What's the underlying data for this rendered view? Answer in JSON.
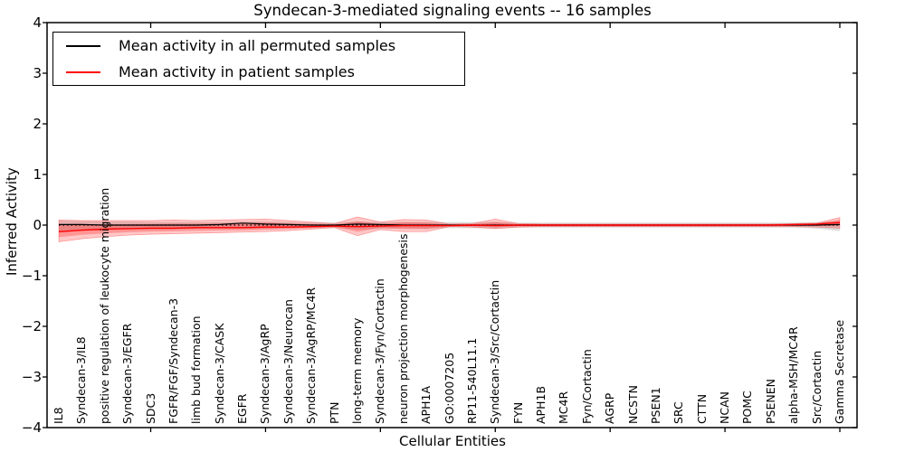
{
  "chart_data": {
    "type": "line",
    "title": "Syndecan-3-mediated signaling events -- 16 samples",
    "xlabel": "Cellular Entities",
    "ylabel": "Inferred Activity",
    "ylim": [
      -4,
      4
    ],
    "yticks": [
      4,
      3,
      2,
      1,
      0,
      -1,
      -2,
      -3,
      -4
    ],
    "grid": false,
    "zero_reference_line": true,
    "legend": {
      "position": "upper left"
    },
    "layout_hints": {
      "x_major_tick_indices": [
        4,
        9,
        14,
        19,
        24,
        29,
        34
      ],
      "x_labels_rotated_90_inside": true
    },
    "colors": {
      "permuted": "#000000",
      "patient": "#ff0000",
      "patient_band": "rgba(255,0,0,0.22)",
      "permuted_band": "rgba(0,0,0,0.13)"
    },
    "categories": [
      "IL8",
      "Syndecan-3/IL8",
      "positive regulation of leukocyte migration",
      "Syndecan-3/EGFR",
      "SDC3",
      "FGFR/FGF/Syndecan-3",
      "limb bud formation",
      "Syndecan-3/CASK",
      "EGFR",
      "Syndecan-3/AgRP",
      "Syndecan-3/Neurocan",
      "Syndecan-3/AgRP/MC4R",
      "PTN",
      "long-term memory",
      "Syndecan-3/Fyn/Cortactin",
      "neuron projection morphogenesis",
      "APH1A",
      "GO:0007205",
      "RP11-540L11.1",
      "Syndecan-3/Src/Cortactin",
      "FYN",
      "APH1B",
      "MC4R",
      "Fyn/Cortactin",
      "AGRP",
      "NCSTN",
      "PSEN1",
      "SRC",
      "CTTN",
      "NCAN",
      "POMC",
      "PSENEN",
      "alpha-MSH/MC4R",
      "Src/Cortactin",
      "Gamma Secretase"
    ],
    "series": [
      {
        "name": "Mean activity in all permuted samples",
        "color": "#000000",
        "values": [
          0.01,
          0.01,
          0.0,
          0.0,
          0.0,
          0.0,
          0.0,
          0.01,
          0.04,
          0.02,
          0.01,
          0.0,
          0.0,
          0.02,
          0.01,
          0.0,
          0.0,
          0.0,
          0.0,
          0.0,
          0.0,
          0.0,
          0.0,
          0.0,
          0.0,
          0.0,
          0.0,
          0.0,
          0.0,
          0.0,
          0.0,
          0.0,
          0.0,
          0.0,
          0.01
        ]
      },
      {
        "name": "Mean activity in patient samples",
        "color": "#ff0000",
        "values": [
          -0.13,
          -0.1,
          -0.08,
          -0.07,
          -0.06,
          -0.06,
          -0.05,
          -0.05,
          -0.05,
          -0.04,
          -0.04,
          -0.03,
          -0.02,
          -0.03,
          -0.02,
          -0.01,
          -0.01,
          -0.01,
          0.0,
          -0.01,
          0.0,
          0.0,
          0.0,
          0.0,
          0.0,
          0.0,
          0.0,
          0.0,
          0.0,
          0.0,
          0.0,
          0.0,
          0.01,
          0.02,
          0.05
        ]
      }
    ],
    "bands": [
      {
        "name": "patient-activity-range",
        "color": "#ff0000",
        "upper": [
          0.1,
          0.09,
          0.09,
          0.09,
          0.09,
          0.1,
          0.09,
          0.1,
          0.11,
          0.12,
          0.09,
          0.06,
          0.03,
          0.16,
          0.06,
          0.11,
          0.1,
          0.02,
          0.03,
          0.12,
          0.03,
          0.02,
          0.02,
          0.02,
          0.02,
          0.02,
          0.02,
          0.02,
          0.02,
          0.02,
          0.02,
          0.02,
          0.03,
          0.04,
          0.15
        ],
        "lower": [
          -0.33,
          -0.27,
          -0.23,
          -0.2,
          -0.18,
          -0.17,
          -0.16,
          -0.15,
          -0.14,
          -0.13,
          -0.11,
          -0.08,
          -0.05,
          -0.21,
          -0.09,
          -0.13,
          -0.13,
          -0.03,
          -0.04,
          -0.07,
          -0.04,
          -0.03,
          -0.03,
          -0.03,
          -0.03,
          -0.03,
          -0.03,
          -0.03,
          -0.03,
          -0.03,
          -0.03,
          -0.03,
          -0.03,
          -0.04,
          -0.06
        ]
      },
      {
        "name": "permuted-activity-range",
        "color": "#000000",
        "upper": [
          0.09,
          0.08,
          0.07,
          0.07,
          0.06,
          0.06,
          0.06,
          0.06,
          0.07,
          0.07,
          0.06,
          0.05,
          0.05,
          0.07,
          0.06,
          0.06,
          0.06,
          0.06,
          0.06,
          0.06,
          0.05,
          0.05,
          0.05,
          0.05,
          0.05,
          0.05,
          0.05,
          0.05,
          0.05,
          0.05,
          0.05,
          0.05,
          0.05,
          0.06,
          0.08
        ],
        "lower": [
          -0.12,
          -0.1,
          -0.09,
          -0.08,
          -0.08,
          -0.08,
          -0.07,
          -0.07,
          -0.07,
          -0.07,
          -0.06,
          -0.06,
          -0.06,
          -0.08,
          -0.07,
          -0.06,
          -0.07,
          -0.06,
          -0.06,
          -0.07,
          -0.05,
          -0.05,
          -0.05,
          -0.05,
          -0.05,
          -0.05,
          -0.05,
          -0.05,
          -0.05,
          -0.05,
          -0.05,
          -0.05,
          -0.05,
          -0.07,
          -0.12
        ]
      }
    ]
  }
}
